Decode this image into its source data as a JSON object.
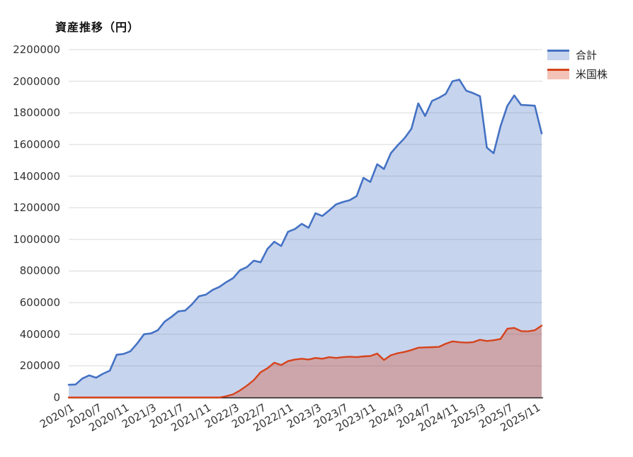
{
  "chart_data": {
    "type": "area",
    "title": "資産推移（円）",
    "ylim": [
      0,
      2200000
    ],
    "y_ticks": [
      0,
      200000,
      400000,
      600000,
      800000,
      1000000,
      1200000,
      1400000,
      1600000,
      1800000,
      2000000,
      2200000
    ],
    "x_tick_labels": [
      "2020/1",
      "2020/7",
      "2020/11",
      "2021/3",
      "2021/7",
      "2021/11",
      "2022/3",
      "2022/7",
      "2022/11",
      "2023/3",
      "2023/7",
      "2023/11",
      "2024/3",
      "2024/7",
      "2024/11",
      "2025/3",
      "2025/7",
      "2025/11"
    ],
    "x_tick_indices": [
      0,
      4,
      8,
      12,
      16,
      20,
      24,
      28,
      32,
      36,
      40,
      44,
      48,
      52,
      56,
      60,
      64,
      68
    ],
    "grid": true,
    "legend_position": "top-right",
    "colors": {
      "grid": "#d9d9d9",
      "axis": "#1f1f1f",
      "label_text": "#333333",
      "total_line": "#4472c4",
      "total_fill": "rgba(68,114,196,0.30)",
      "us_line": "#d6431c",
      "us_fill": "rgba(214,67,28,0.32)"
    },
    "series": [
      {
        "name": "合計",
        "color": "#4472c4",
        "fill": "rgba(68,114,196,0.30)",
        "values": [
          80000,
          82000,
          120000,
          140000,
          125000,
          150000,
          170000,
          270000,
          275000,
          292000,
          342000,
          400000,
          405000,
          425000,
          480000,
          510000,
          545000,
          550000,
          590000,
          640000,
          650000,
          680000,
          700000,
          730000,
          755000,
          805000,
          825000,
          865000,
          855000,
          940000,
          985000,
          958000,
          1048000,
          1065000,
          1098000,
          1073000,
          1165000,
          1148000,
          1183000,
          1221000,
          1236000,
          1248000,
          1273000,
          1389000,
          1363000,
          1475000,
          1445000,
          1545000,
          1595000,
          1640000,
          1700000,
          1860000,
          1780000,
          1875000,
          1895000,
          1920000,
          2000000,
          2010000,
          1940000,
          1925000,
          1905000,
          1580000,
          1545000,
          1715000,
          1845000,
          1910000,
          1850000,
          1848000,
          1845000,
          1670000
        ]
      },
      {
        "name": "米国株",
        "color": "#d6431c",
        "fill": "rgba(214,67,28,0.32)",
        "values": [
          0,
          0,
          0,
          0,
          0,
          0,
          0,
          0,
          0,
          0,
          0,
          0,
          0,
          0,
          0,
          0,
          0,
          0,
          0,
          0,
          0,
          0,
          0,
          8000,
          20000,
          45000,
          75000,
          110000,
          160000,
          185000,
          220000,
          205000,
          230000,
          240000,
          245000,
          240000,
          250000,
          245000,
          255000,
          250000,
          255000,
          258000,
          255000,
          260000,
          262000,
          278000,
          237000,
          267000,
          280000,
          288000,
          300000,
          315000,
          317000,
          318000,
          320000,
          340000,
          355000,
          350000,
          347000,
          350000,
          365000,
          357000,
          362000,
          370000,
          435000,
          440000,
          420000,
          418000,
          425000,
          455000
        ]
      }
    ]
  }
}
